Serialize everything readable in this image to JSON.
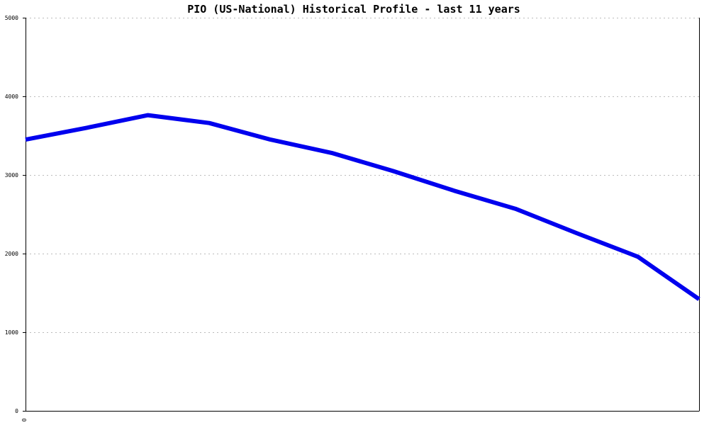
{
  "chart_data": {
    "type": "line",
    "title": "PIO (US-National) Historical Profile - last 11 years",
    "xlabel": "",
    "ylabel": "",
    "ylim": [
      0,
      5000
    ],
    "yticks": [
      0,
      1000,
      2000,
      3000,
      4000,
      5000
    ],
    "xtick_labels": [
      "0"
    ],
    "grid": true,
    "line_color": "#0000ee",
    "grid_color": "#bbbbbb",
    "axis_color": "#000000",
    "series": [
      {
        "x": [
          0,
          1,
          2,
          3,
          4,
          5,
          6,
          7,
          8,
          9,
          10,
          11
        ],
        "values": [
          3450,
          3600,
          3760,
          3660,
          3450,
          3280,
          3050,
          2800,
          2570,
          2260,
          1960,
          1420
        ]
      }
    ]
  }
}
